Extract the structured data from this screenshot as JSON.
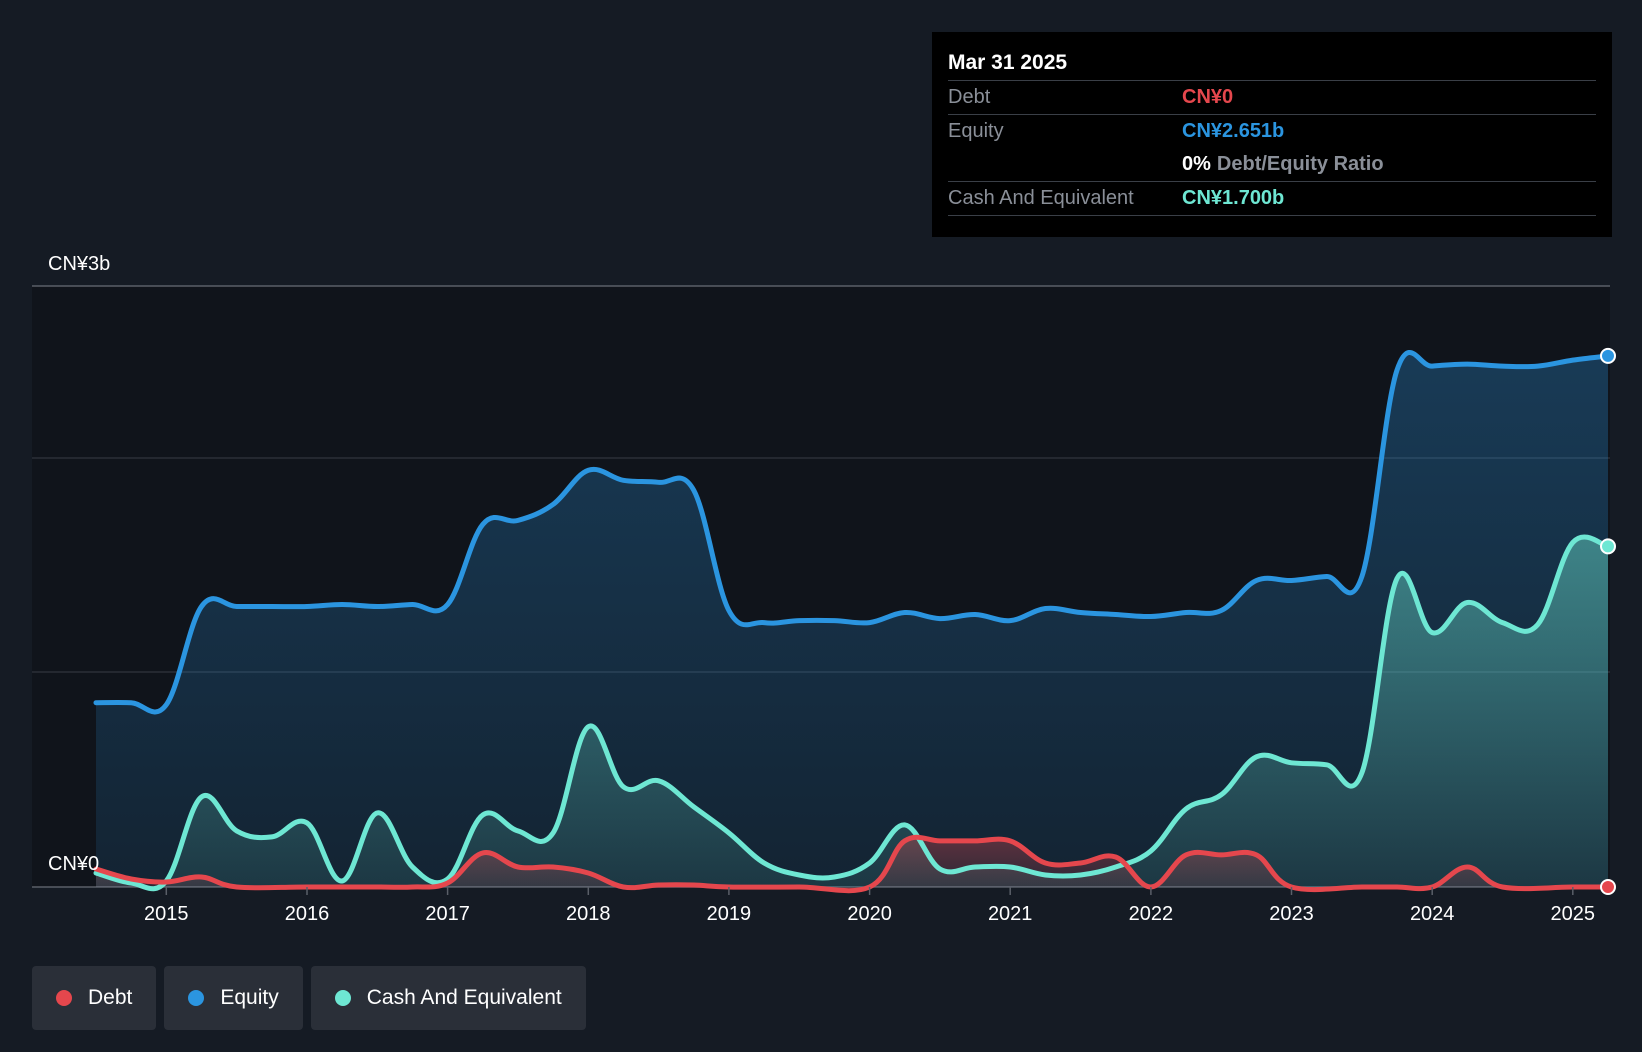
{
  "tooltip": {
    "date": "Mar 31 2025",
    "debt_label": "Debt",
    "debt_value": "CN¥0",
    "equity_label": "Equity",
    "equity_value": "CN¥2.651b",
    "ratio_pct": "0%",
    "ratio_label": "Debt/Equity Ratio",
    "cash_label": "Cash And Equivalent",
    "cash_value": "CN¥1.700b"
  },
  "legend": [
    {
      "label": "Debt",
      "color": "#e5474d"
    },
    {
      "label": "Equity",
      "color": "#2b95e0"
    },
    {
      "label": "Cash And Equivalent",
      "color": "#6ee7d3"
    }
  ],
  "colors": {
    "debt": "#e5474d",
    "equity": "#2b95e0",
    "cash": "#6ee7d3",
    "background": "#151b24",
    "plot_background": "#10141b"
  },
  "chart_data": {
    "type": "area",
    "y_top_label": "CN¥3b",
    "y_bottom_label": "CN¥0",
    "ylim": [
      0,
      2.8
    ],
    "xlim": [
      2014.5,
      2025.25
    ],
    "x_ticks": [
      "2015",
      "2016",
      "2017",
      "2018",
      "2019",
      "2020",
      "2021",
      "2022",
      "2023",
      "2024",
      "2025"
    ],
    "grid": true,
    "legend_position": "bottom-left",
    "series": [
      {
        "name": "Debt",
        "color": "#e5474d",
        "points": [
          [
            2014.5,
            0.09
          ],
          [
            2014.75,
            0.04
          ],
          [
            2015.0,
            0.025
          ],
          [
            2015.25,
            0.05
          ],
          [
            2015.5,
            0.0
          ],
          [
            2016.0,
            0.0
          ],
          [
            2016.5,
            0.0
          ],
          [
            2016.75,
            0.0
          ],
          [
            2017.0,
            0.02
          ],
          [
            2017.25,
            0.17
          ],
          [
            2017.5,
            0.1
          ],
          [
            2017.75,
            0.1
          ],
          [
            2018.0,
            0.07
          ],
          [
            2018.25,
            0.0
          ],
          [
            2018.5,
            0.01
          ],
          [
            2018.75,
            0.01
          ],
          [
            2019.0,
            0.0
          ],
          [
            2019.5,
            0.0
          ],
          [
            2020.0,
            0.0
          ],
          [
            2020.25,
            0.23
          ],
          [
            2020.5,
            0.23
          ],
          [
            2020.75,
            0.23
          ],
          [
            2021.0,
            0.23
          ],
          [
            2021.25,
            0.12
          ],
          [
            2021.5,
            0.12
          ],
          [
            2021.75,
            0.15
          ],
          [
            2022.0,
            0.0
          ],
          [
            2022.25,
            0.16
          ],
          [
            2022.5,
            0.16
          ],
          [
            2022.75,
            0.16
          ],
          [
            2023.0,
            0.0
          ],
          [
            2023.5,
            0.0
          ],
          [
            2023.75,
            0.0
          ],
          [
            2024.0,
            0.0
          ],
          [
            2024.25,
            0.1
          ],
          [
            2024.5,
            0.0
          ],
          [
            2025.0,
            0.0
          ],
          [
            2025.25,
            0.0
          ]
        ]
      },
      {
        "name": "Equity",
        "color": "#2b95e0",
        "points": [
          [
            2014.5,
            0.92
          ],
          [
            2014.75,
            0.92
          ],
          [
            2015.0,
            0.91
          ],
          [
            2015.25,
            1.4
          ],
          [
            2015.5,
            1.4
          ],
          [
            2015.75,
            1.4
          ],
          [
            2016.0,
            1.4
          ],
          [
            2016.25,
            1.41
          ],
          [
            2016.5,
            1.4
          ],
          [
            2016.75,
            1.41
          ],
          [
            2017.0,
            1.41
          ],
          [
            2017.25,
            1.81
          ],
          [
            2017.5,
            1.83
          ],
          [
            2017.75,
            1.91
          ],
          [
            2018.0,
            2.08
          ],
          [
            2018.25,
            2.03
          ],
          [
            2018.5,
            2.02
          ],
          [
            2018.75,
            1.98
          ],
          [
            2019.0,
            1.38
          ],
          [
            2019.25,
            1.32
          ],
          [
            2019.5,
            1.33
          ],
          [
            2019.75,
            1.33
          ],
          [
            2020.0,
            1.32
          ],
          [
            2020.25,
            1.37
          ],
          [
            2020.5,
            1.34
          ],
          [
            2020.75,
            1.36
          ],
          [
            2021.0,
            1.33
          ],
          [
            2021.25,
            1.39
          ],
          [
            2021.5,
            1.37
          ],
          [
            2021.75,
            1.36
          ],
          [
            2022.0,
            1.35
          ],
          [
            2022.25,
            1.37
          ],
          [
            2022.5,
            1.38
          ],
          [
            2022.75,
            1.53
          ],
          [
            2023.0,
            1.53
          ],
          [
            2023.25,
            1.55
          ],
          [
            2023.5,
            1.55
          ],
          [
            2023.75,
            2.58
          ],
          [
            2024.0,
            2.6
          ],
          [
            2024.25,
            2.61
          ],
          [
            2024.5,
            2.6
          ],
          [
            2024.75,
            2.6
          ],
          [
            2025.0,
            2.63
          ],
          [
            2025.25,
            2.651
          ]
        ]
      },
      {
        "name": "Cash And Equivalent",
        "color": "#6ee7d3",
        "points": [
          [
            2014.5,
            0.07
          ],
          [
            2014.75,
            0.02
          ],
          [
            2015.0,
            0.03
          ],
          [
            2015.25,
            0.45
          ],
          [
            2015.5,
            0.28
          ],
          [
            2015.75,
            0.25
          ],
          [
            2016.0,
            0.32
          ],
          [
            2016.25,
            0.03
          ],
          [
            2016.5,
            0.37
          ],
          [
            2016.75,
            0.1
          ],
          [
            2017.0,
            0.04
          ],
          [
            2017.25,
            0.36
          ],
          [
            2017.5,
            0.28
          ],
          [
            2017.75,
            0.27
          ],
          [
            2018.0,
            0.8
          ],
          [
            2018.25,
            0.5
          ],
          [
            2018.5,
            0.53
          ],
          [
            2018.75,
            0.4
          ],
          [
            2019.0,
            0.27
          ],
          [
            2019.25,
            0.12
          ],
          [
            2019.5,
            0.06
          ],
          [
            2019.75,
            0.05
          ],
          [
            2020.0,
            0.12
          ],
          [
            2020.25,
            0.31
          ],
          [
            2020.5,
            0.09
          ],
          [
            2020.75,
            0.1
          ],
          [
            2021.0,
            0.1
          ],
          [
            2021.25,
            0.06
          ],
          [
            2021.5,
            0.06
          ],
          [
            2021.75,
            0.1
          ],
          [
            2022.0,
            0.18
          ],
          [
            2022.25,
            0.39
          ],
          [
            2022.5,
            0.46
          ],
          [
            2022.75,
            0.65
          ],
          [
            2023.0,
            0.62
          ],
          [
            2023.25,
            0.61
          ],
          [
            2023.5,
            0.57
          ],
          [
            2023.75,
            1.54
          ],
          [
            2024.0,
            1.27
          ],
          [
            2024.25,
            1.42
          ],
          [
            2024.5,
            1.32
          ],
          [
            2024.75,
            1.31
          ],
          [
            2025.0,
            1.72
          ],
          [
            2025.25,
            1.7
          ]
        ]
      }
    ]
  }
}
